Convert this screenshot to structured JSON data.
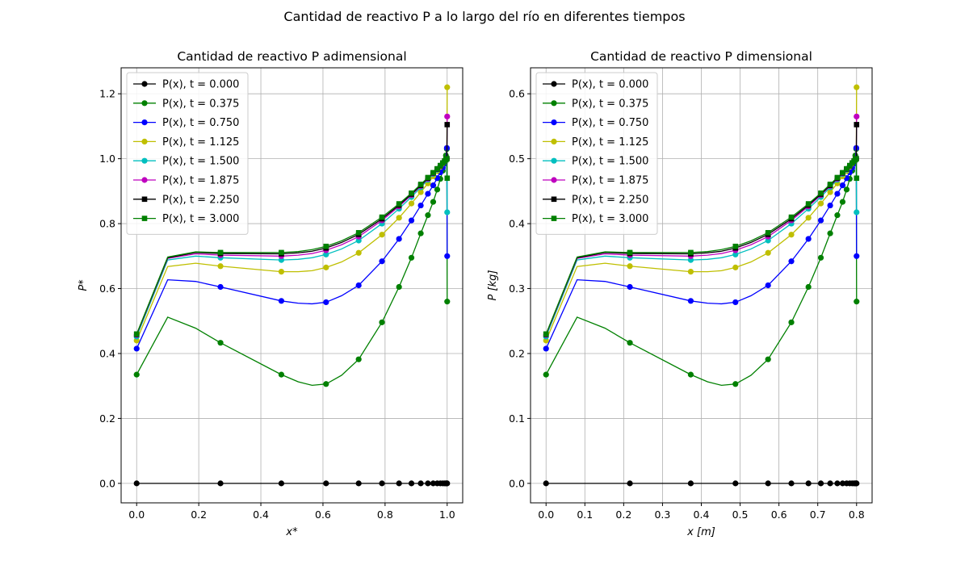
{
  "figure": {
    "suptitle": "Cantidad de reactivo P a lo largo del río en diferentes tiempos"
  },
  "chart_data": [
    {
      "type": "line",
      "title": "Cantidad de reactivo P adimensional",
      "xlabel": "x*",
      "ylabel": "P*",
      "xlim": [
        -0.05,
        1.05
      ],
      "ylim": [
        -0.06,
        1.28
      ],
      "xticks": [
        0.0,
        0.2,
        0.4,
        0.6,
        0.8,
        1.0
      ],
      "yticks": [
        0.0,
        0.2,
        0.4,
        0.6,
        0.8,
        1.0,
        1.2
      ],
      "grid": true,
      "legend_position": "upper-left",
      "x_markers": [
        0.0,
        0.27,
        0.466,
        0.61,
        0.715,
        0.79,
        0.845,
        0.885,
        0.915,
        0.938,
        0.955,
        0.968,
        0.978,
        0.986,
        0.992,
        0.996,
        0.999,
        1.0
      ],
      "series": [
        {
          "name": "P(x), t = 0.000",
          "color": "#000000",
          "marker": "circle",
          "x": [
            0.0,
            0.27,
            0.466,
            0.61,
            0.715,
            0.79,
            0.845,
            0.885,
            0.915,
            0.938,
            0.955,
            0.968,
            0.978,
            0.986,
            0.992,
            0.996,
            0.999,
            1.0
          ],
          "y": [
            0,
            0,
            0,
            0,
            0,
            0,
            0,
            0,
            0,
            0,
            0,
            0,
            0,
            0,
            0,
            0,
            0,
            0
          ]
        },
        {
          "name": "P(x), t = 0.375",
          "color": "#008000",
          "marker": "circle",
          "x": [
            0.0,
            0.1,
            0.19,
            0.27,
            0.466,
            0.52,
            0.565,
            0.61,
            0.66,
            0.715,
            0.79,
            0.845,
            0.885,
            0.915,
            0.938,
            0.955,
            0.968,
            0.978,
            0.986,
            0.992,
            0.996,
            0.999,
            1.0
          ],
          "y": [
            0.335,
            0.512,
            0.478,
            0.433,
            0.335,
            0.313,
            0.302,
            0.306,
            0.333,
            0.382,
            0.496,
            0.605,
            0.695,
            0.77,
            0.826,
            0.867,
            0.905,
            0.938,
            0.963,
            0.99,
            1.01,
            1.03,
            0.56
          ]
        },
        {
          "name": "P(x), t = 0.750",
          "color": "#0000ff",
          "marker": "circle",
          "x": [
            0.0,
            0.1,
            0.19,
            0.27,
            0.466,
            0.52,
            0.565,
            0.61,
            0.66,
            0.715,
            0.79,
            0.845,
            0.885,
            0.915,
            0.938,
            0.955,
            0.968,
            0.978,
            0.986,
            0.992,
            0.996,
            0.999,
            1.0
          ],
          "y": [
            0.415,
            0.627,
            0.622,
            0.605,
            0.562,
            0.555,
            0.553,
            0.558,
            0.578,
            0.61,
            0.684,
            0.753,
            0.81,
            0.856,
            0.892,
            0.918,
            0.94,
            0.958,
            0.972,
            0.985,
            0.997,
            1.033,
            0.7
          ]
        },
        {
          "name": "P(x), t = 1.125",
          "color": "#bfbf00",
          "marker": "circle",
          "x": [
            0.0,
            0.1,
            0.19,
            0.27,
            0.466,
            0.52,
            0.565,
            0.61,
            0.66,
            0.715,
            0.79,
            0.845,
            0.885,
            0.915,
            0.938,
            0.955,
            0.968,
            0.978,
            0.986,
            0.992,
            0.996,
            0.999,
            1.0
          ],
          "y": [
            0.44,
            0.668,
            0.678,
            0.669,
            0.652,
            0.652,
            0.655,
            0.665,
            0.682,
            0.71,
            0.766,
            0.818,
            0.862,
            0.897,
            0.924,
            0.946,
            0.962,
            0.975,
            0.985,
            0.993,
            0.998,
            1.0,
            1.22
          ]
        },
        {
          "name": "P(x), t = 1.500",
          "color": "#00bfbf",
          "marker": "circle",
          "x": [
            0.0,
            0.1,
            0.19,
            0.27,
            0.466,
            0.52,
            0.565,
            0.61,
            0.66,
            0.715,
            0.79,
            0.845,
            0.885,
            0.915,
            0.938,
            0.955,
            0.968,
            0.978,
            0.986,
            0.992,
            0.996,
            0.999,
            1.0
          ],
          "y": [
            0.452,
            0.688,
            0.7,
            0.695,
            0.688,
            0.69,
            0.695,
            0.705,
            0.722,
            0.748,
            0.8,
            0.846,
            0.882,
            0.912,
            0.935,
            0.953,
            0.966,
            0.978,
            0.987,
            0.993,
            0.997,
            1.0,
            0.835
          ]
        },
        {
          "name": "P(x), t = 1.875",
          "color": "#bf00bf",
          "marker": "circle",
          "x": [
            0.0,
            0.1,
            0.19,
            0.27,
            0.466,
            0.52,
            0.565,
            0.61,
            0.66,
            0.715,
            0.79,
            0.845,
            0.885,
            0.915,
            0.938,
            0.955,
            0.968,
            0.978,
            0.986,
            0.992,
            0.996,
            0.999,
            1.0
          ],
          "y": [
            0.457,
            0.693,
            0.707,
            0.703,
            0.7,
            0.703,
            0.708,
            0.718,
            0.735,
            0.76,
            0.81,
            0.853,
            0.888,
            0.916,
            0.938,
            0.955,
            0.968,
            0.978,
            0.987,
            0.993,
            0.997,
            1.0,
            1.13
          ]
        },
        {
          "name": "P(x), t = 2.250",
          "color": "#000000",
          "marker": "square",
          "x": [
            0.0,
            0.1,
            0.19,
            0.27,
            0.466,
            0.52,
            0.565,
            0.61,
            0.66,
            0.715,
            0.79,
            0.845,
            0.885,
            0.915,
            0.938,
            0.955,
            0.968,
            0.978,
            0.986,
            0.992,
            0.996,
            0.999,
            1.0
          ],
          "y": [
            0.459,
            0.695,
            0.711,
            0.708,
            0.707,
            0.71,
            0.715,
            0.725,
            0.742,
            0.767,
            0.815,
            0.857,
            0.891,
            0.918,
            0.94,
            0.956,
            0.968,
            0.978,
            0.987,
            0.993,
            0.997,
            1.0,
            1.105
          ]
        },
        {
          "name": "P(x), t = 3.000",
          "color": "#008000",
          "marker": "square",
          "x": [
            0.0,
            0.1,
            0.19,
            0.27,
            0.466,
            0.52,
            0.565,
            0.61,
            0.66,
            0.715,
            0.79,
            0.845,
            0.885,
            0.915,
            0.938,
            0.955,
            0.968,
            0.978,
            0.986,
            0.992,
            0.996,
            0.999,
            1.0
          ],
          "y": [
            0.46,
            0.697,
            0.713,
            0.711,
            0.711,
            0.714,
            0.72,
            0.73,
            0.747,
            0.772,
            0.82,
            0.861,
            0.894,
            0.921,
            0.942,
            0.957,
            0.969,
            0.979,
            0.987,
            0.993,
            0.997,
            1.0,
            0.94
          ]
        }
      ]
    },
    {
      "type": "line",
      "title": "Cantidad de reactivo P dimensional",
      "xlabel": "x [m]",
      "ylabel": "P [kg]",
      "xlim": [
        -0.04,
        0.84
      ],
      "ylim": [
        -0.03,
        0.64
      ],
      "xticks": [
        0.0,
        0.1,
        0.2,
        0.3,
        0.4,
        0.5,
        0.6,
        0.7,
        0.8
      ],
      "yticks": [
        0.0,
        0.1,
        0.2,
        0.3,
        0.4,
        0.5,
        0.6
      ],
      "grid": true,
      "legend_position": "upper-left",
      "x_scale": 0.8,
      "y_scale": 0.5,
      "series_names": [
        "P(x), t = 0.000",
        "P(x), t = 0.375",
        "P(x), t = 0.750",
        "P(x), t = 1.125",
        "P(x), t = 1.500",
        "P(x), t = 1.875",
        "P(x), t = 2.250",
        "P(x), t = 3.000"
      ]
    }
  ]
}
